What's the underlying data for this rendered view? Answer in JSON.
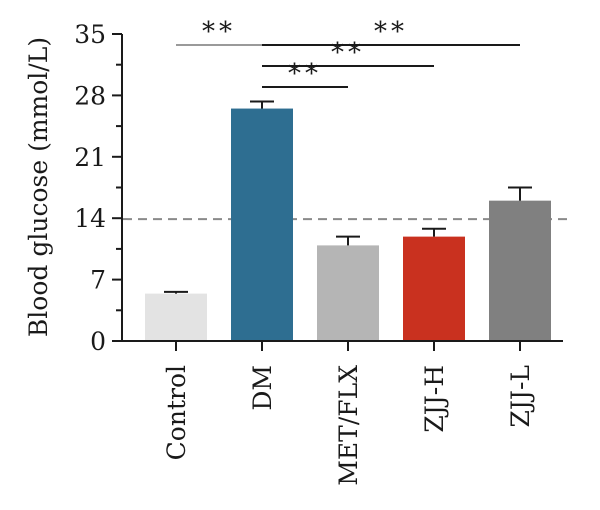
{
  "chart_data": {
    "type": "bar",
    "title": "",
    "xlabel": "",
    "ylabel": "Blood glucose (mmol/L)",
    "ylim": [
      0,
      35
    ],
    "yticks": [
      0,
      7,
      14,
      21,
      28,
      35
    ],
    "categories": [
      "Control",
      "DM",
      "MET/FLX",
      "ZJJ-H",
      "ZJJ-L"
    ],
    "values": [
      5.4,
      26.5,
      10.9,
      11.9,
      16.0
    ],
    "errors": [
      0.2,
      0.8,
      1.0,
      0.9,
      1.5
    ],
    "colors": [
      "#e3e3e3",
      "#2e6e91",
      "#b5b5b5",
      "#c9311f",
      "#808080"
    ],
    "reference_line": {
      "value": 13.9,
      "style": "dashed",
      "color": "#8a8a8a"
    },
    "significance": [
      {
        "from": "Control",
        "to": "DM",
        "label": "**",
        "color": "#9a9a9a"
      },
      {
        "from": "DM",
        "to": "ZJJ-L",
        "label": "**",
        "color": "#1a1a1a"
      },
      {
        "from": "DM",
        "to": "ZJJ-H",
        "label": "**",
        "color": "#1a1a1a"
      },
      {
        "from": "DM",
        "to": "MET/FLX",
        "label": "**",
        "color": "#1a1a1a"
      }
    ],
    "grid": false,
    "legend": "none"
  }
}
